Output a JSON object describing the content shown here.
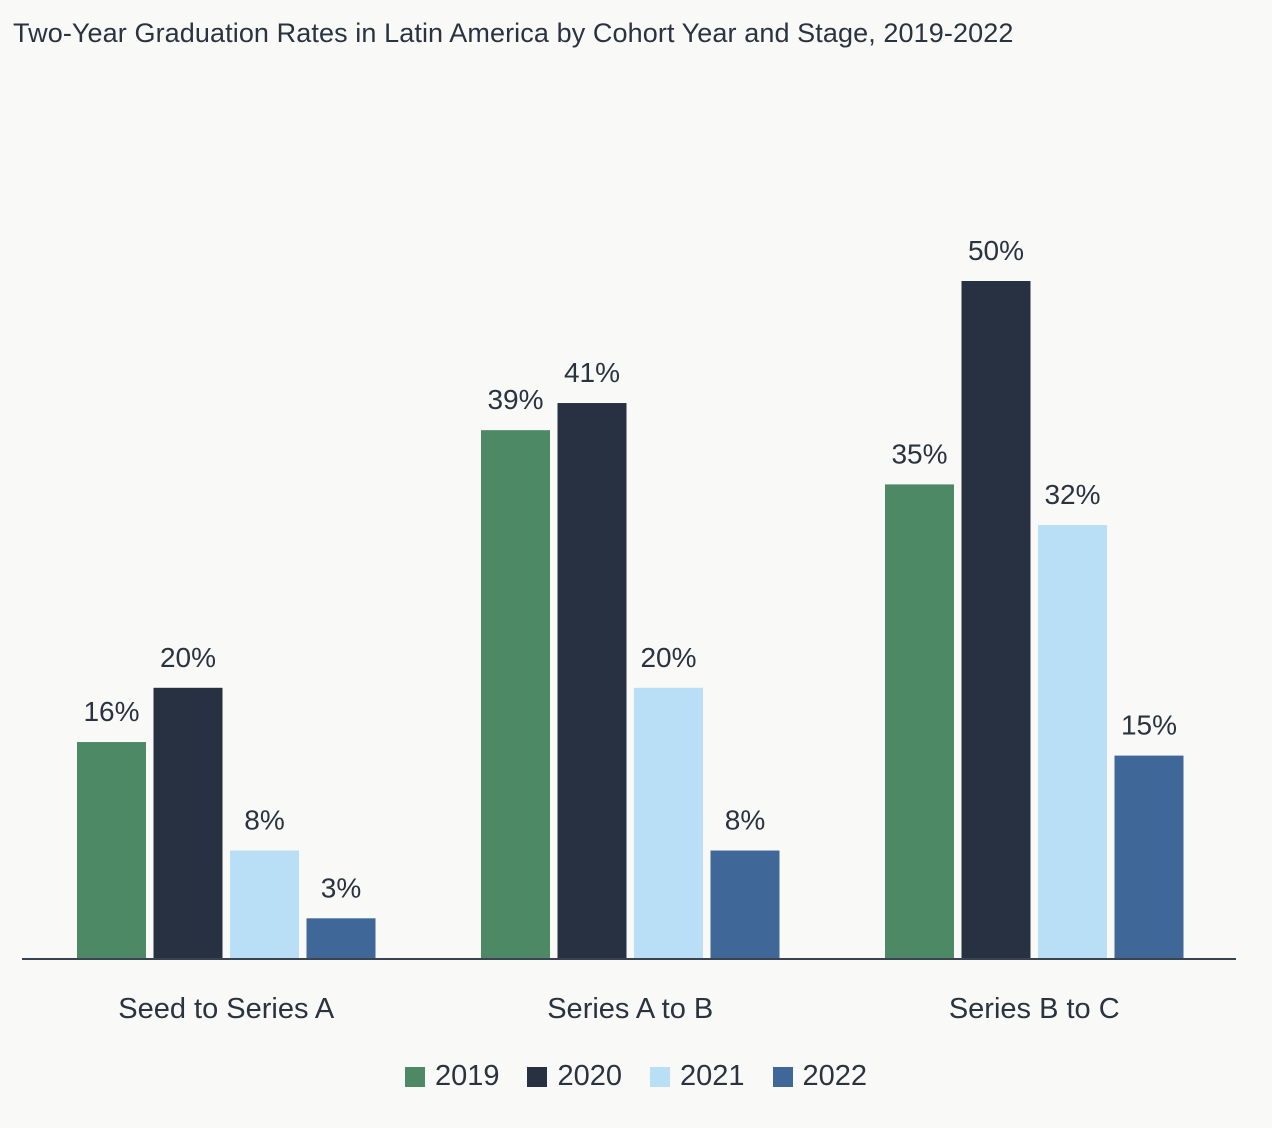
{
  "chart_data": {
    "type": "bar",
    "title": "Two-Year Graduation Rates in Latin America by Cohort Year and Stage, 2019-2022",
    "xlabel": "",
    "ylabel": "",
    "categories": [
      "Seed to Series A",
      "Series A to B",
      "Series B to C"
    ],
    "series": [
      {
        "name": "2019",
        "color": "#4e8966",
        "values": [
          16,
          39,
          35
        ],
        "labels": [
          "16%",
          "39%",
          "35%"
        ]
      },
      {
        "name": "2020",
        "color": "#283142",
        "values": [
          20,
          41,
          50
        ],
        "labels": [
          "20%",
          "41%",
          "50%"
        ]
      },
      {
        "name": "2021",
        "color": "#b8dff6",
        "values": [
          8,
          20,
          32
        ],
        "labels": [
          "8%",
          "20%",
          "32%"
        ]
      },
      {
        "name": "2022",
        "color": "#3f6899",
        "values": [
          3,
          8,
          15
        ],
        "labels": [
          "3%",
          "8%",
          "15%"
        ]
      }
    ],
    "ylim": [
      0,
      50
    ],
    "value_unit": "%",
    "grid": false,
    "y_axis_shown": false,
    "legend_position": "bottom"
  }
}
